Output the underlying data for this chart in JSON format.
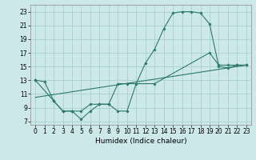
{
  "xlabel": "Humidex (Indice chaleur)",
  "bg_color": "#cde8e8",
  "grid_color": "#aacfcf",
  "line_color": "#2d7a6a",
  "xlim": [
    -0.5,
    23.5
  ],
  "ylim": [
    6.5,
    24.0
  ],
  "xticks": [
    0,
    1,
    2,
    3,
    4,
    5,
    6,
    7,
    8,
    9,
    10,
    11,
    12,
    13,
    14,
    15,
    16,
    17,
    18,
    19,
    20,
    21,
    22,
    23
  ],
  "yticks": [
    7,
    9,
    11,
    13,
    15,
    17,
    19,
    21,
    23
  ],
  "line1_x": [
    0,
    1,
    2,
    3,
    4,
    5,
    6,
    7,
    8,
    9,
    10,
    11,
    12,
    13,
    14,
    15,
    16,
    17,
    18,
    19,
    20,
    21,
    22,
    23
  ],
  "line1_y": [
    13,
    12.8,
    10.0,
    8.5,
    8.5,
    7.3,
    8.5,
    9.5,
    9.5,
    8.5,
    8.5,
    12.5,
    15.5,
    17.5,
    20.5,
    22.8,
    23.0,
    23.0,
    22.8,
    21.2,
    15.0,
    14.8,
    15.2,
    15.2
  ],
  "line2_x": [
    0,
    2,
    3,
    4,
    5,
    6,
    7,
    8,
    9,
    10,
    13,
    19,
    20,
    21,
    22,
    23
  ],
  "line2_y": [
    13,
    10.0,
    8.5,
    8.5,
    8.5,
    9.5,
    9.5,
    9.5,
    12.5,
    12.5,
    12.5,
    17.0,
    15.2,
    15.2,
    15.2,
    15.2
  ],
  "line3_x": [
    0,
    23
  ],
  "line3_y": [
    10.5,
    15.2
  ],
  "xlabel_fontsize": 6.5,
  "tick_fontsize": 5.5
}
